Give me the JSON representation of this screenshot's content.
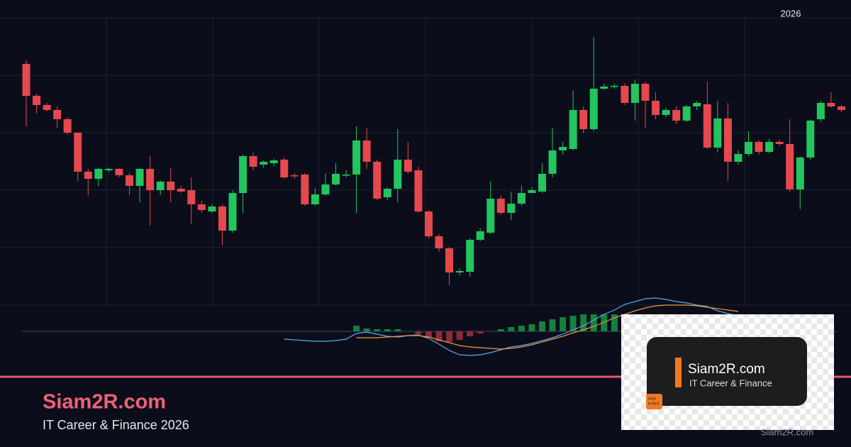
{
  "chart_data": [
    {
      "type": "candlestick",
      "annotation": "2026",
      "ylim": [
        0,
        405
      ],
      "grid": true,
      "up_color": "#22c55e",
      "down_color": "#e5484d",
      "open": [
        340,
        295,
        282,
        275,
        262,
        243,
        188,
        178,
        190,
        192,
        183,
        168,
        192,
        162,
        174,
        164,
        162,
        142,
        132,
        139,
        105,
        158,
        210,
        198,
        200,
        205,
        183,
        184,
        142,
        156,
        170,
        183,
        184,
        232,
        202,
        152,
        164,
        205,
        190,
        132,
        97,
        80,
        46,
        47,
        92,
        102,
        150,
        130,
        143,
        158,
        160,
        185,
        218,
        220,
        275,
        248,
        305,
        308,
        309,
        285,
        312,
        288,
        268,
        275,
        260,
        280,
        283,
        222,
        263,
        202,
        213,
        230,
        216,
        230,
        227,
        163,
        208,
        262,
        285,
        280
      ],
      "high": [
        345,
        298,
        285,
        280,
        265,
        243,
        192,
        194,
        194,
        193,
        186,
        193,
        210,
        176,
        194,
        168,
        180,
        147,
        142,
        142,
        162,
        212,
        215,
        204,
        206,
        208,
        186,
        186,
        165,
        185,
        200,
        190,
        252,
        250,
        205,
        166,
        248,
        230,
        195,
        134,
        100,
        82,
        52,
        94,
        108,
        175,
        154,
        160,
        168,
        166,
        200,
        250,
        230,
        302,
        280,
        378,
        312,
        312,
        312,
        318,
        315,
        300,
        278,
        280,
        282,
        288,
        315,
        288,
        285,
        218,
        245,
        232,
        234,
        233,
        262,
        210,
        262,
        288,
        300,
        282
      ],
      "low": [
        252,
        270,
        273,
        250,
        240,
        175,
        155,
        168,
        187,
        180,
        155,
        145,
        112,
        155,
        145,
        158,
        114,
        130,
        130,
        84,
        102,
        130,
        190,
        194,
        196,
        178,
        178,
        140,
        140,
        154,
        168,
        180,
        130,
        192,
        148,
        148,
        145,
        185,
        130,
        94,
        75,
        28,
        42,
        40,
        90,
        100,
        127,
        120,
        140,
        158,
        158,
        180,
        212,
        218,
        242,
        245,
        303,
        305,
        282,
        260,
        250,
        262,
        265,
        255,
        258,
        275,
        220,
        215,
        175,
        198,
        210,
        212,
        214,
        224,
        160,
        135,
        205,
        258,
        278,
        272
      ],
      "close": [
        295,
        282,
        275,
        262,
        243,
        188,
        178,
        192,
        192,
        183,
        168,
        192,
        162,
        174,
        162,
        160,
        142,
        134,
        139,
        105,
        158,
        210,
        195,
        202,
        204,
        180,
        182,
        142,
        156,
        170,
        185,
        184,
        232,
        202,
        150,
        164,
        205,
        188,
        132,
        97,
        80,
        46,
        48,
        92,
        104,
        150,
        130,
        143,
        158,
        162,
        185,
        218,
        223,
        275,
        248,
        305,
        308,
        309,
        285,
        312,
        288,
        268,
        275,
        260,
        280,
        285,
        222,
        263,
        202,
        213,
        230,
        216,
        230,
        227,
        163,
        208,
        260,
        285,
        280,
        275
      ]
    },
    {
      "type": "macd",
      "ylim": [
        -60,
        34
      ],
      "zero_line": true,
      "histogram": {
        "up_color": "#16803f",
        "down_color": "#8e2a36",
        "values": [
          null,
          null,
          null,
          null,
          null,
          null,
          null,
          null,
          null,
          null,
          null,
          null,
          null,
          null,
          null,
          null,
          null,
          null,
          null,
          null,
          null,
          null,
          null,
          null,
          null,
          null,
          null,
          null,
          null,
          null,
          null,
          null,
          8,
          4,
          3,
          3,
          3,
          0,
          -4,
          -9,
          -14,
          -15,
          -12,
          -7,
          -3,
          0,
          3,
          6,
          8,
          10,
          14,
          17,
          20,
          22,
          24,
          24,
          24,
          24,
          22,
          null,
          null,
          null,
          null,
          null,
          null,
          null,
          null,
          null,
          null,
          null,
          null,
          null,
          null,
          null,
          null,
          null,
          null,
          null,
          null,
          null
        ]
      },
      "macd": {
        "color": "#5ba8f0",
        "values": [
          null,
          null,
          null,
          null,
          null,
          null,
          null,
          null,
          null,
          null,
          null,
          null,
          null,
          null,
          null,
          null,
          null,
          null,
          null,
          null,
          null,
          null,
          null,
          null,
          null,
          -11,
          -12,
          -13,
          -14,
          -14,
          -13,
          -11,
          -3,
          -1,
          -4,
          -7,
          -8,
          -6,
          -5,
          -10,
          -18,
          -27,
          -33,
          -34,
          -33,
          -30,
          -26,
          -22,
          -20,
          -17,
          -13,
          -9,
          -4,
          2,
          8,
          16,
          24,
          30,
          38,
          42,
          46,
          47,
          45,
          42,
          40,
          37,
          35,
          29,
          25,
          22,
          null,
          null,
          null,
          null,
          null,
          null,
          null,
          null,
          null,
          null
        ]
      },
      "signal": {
        "color": "#f0954a",
        "values": [
          null,
          null,
          null,
          null,
          null,
          null,
          null,
          null,
          null,
          null,
          null,
          null,
          null,
          null,
          null,
          null,
          null,
          null,
          null,
          null,
          null,
          null,
          null,
          null,
          null,
          null,
          null,
          null,
          null,
          null,
          null,
          null,
          -9,
          -9,
          -9,
          -8,
          -7,
          -6,
          -6,
          -8,
          -12,
          -16,
          -20,
          -22,
          -23,
          -24,
          -25,
          -24,
          -22,
          -19,
          -15,
          -11,
          -7,
          -2,
          2,
          7,
          13,
          19,
          24,
          29,
          33,
          36,
          37,
          37,
          37,
          36,
          34,
          32,
          30,
          28,
          null,
          null,
          null,
          null,
          null,
          null,
          null,
          null,
          null,
          null
        ]
      }
    }
  ],
  "brand": {
    "title": "Siam2R.com",
    "subtitle": "IT Career & Finance 2026"
  },
  "logo": {
    "name": "Siam2R.com",
    "tagline": "IT Career & Finance",
    "badge_line1": "Siam",
    "badge_line2": "to Rich"
  },
  "watermark": "Siam2R.com"
}
